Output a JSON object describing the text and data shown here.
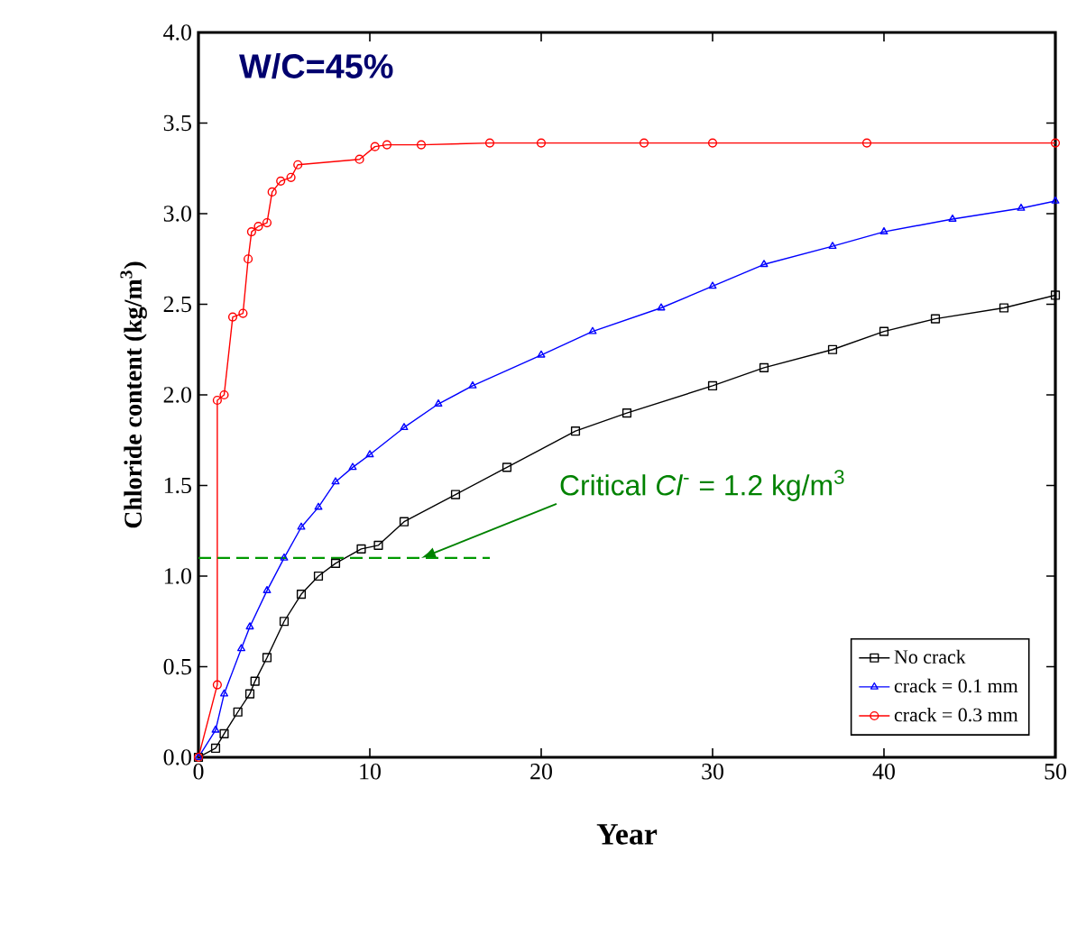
{
  "chart_data": {
    "type": "line",
    "xlabel": "Year",
    "ylabel": "Chloride content (kg/m$^{3}$)",
    "xlim": [
      0,
      50
    ],
    "ylim": [
      0,
      4
    ],
    "xticks": [
      0,
      10,
      20,
      30,
      40,
      50
    ],
    "yticks": [
      {
        "value": 0,
        "label": "0.0"
      },
      {
        "value": 0.5,
        "label": "0.5"
      },
      {
        "value": 1,
        "label": "1.0"
      },
      {
        "value": 1.5,
        "label": "1.5"
      },
      {
        "value": 2,
        "label": "2.0"
      },
      {
        "value": 2.5,
        "label": "2.5"
      },
      {
        "value": 3,
        "label": "3.0"
      },
      {
        "value": 3.5,
        "label": "3.5"
      },
      {
        "value": 4,
        "label": "4.0"
      }
    ],
    "legend": "bottom right",
    "annotations": [
      "W/C=45%",
      {
        "text": "Critical *Cl*$^{-}$ = 1.2 kg/m$^{3}$",
        "x": 13,
        "y": 1.1
      }
    ],
    "series": [
      {
        "name": "No crack",
        "color": "#000000",
        "marker": "square",
        "x": [
          0,
          1,
          1.5,
          2.3,
          3,
          3.3,
          4,
          5,
          6,
          7,
          8,
          9.5,
          10.5,
          12,
          15,
          18,
          22,
          25,
          30,
          33,
          37,
          40,
          43,
          47,
          50
        ],
        "values": [
          0,
          0.05,
          0.13,
          0.25,
          0.35,
          0.42,
          0.55,
          0.75,
          0.9,
          1.0,
          1.07,
          1.15,
          1.17,
          1.3,
          1.45,
          1.6,
          1.8,
          1.9,
          2.05,
          2.15,
          2.25,
          2.35,
          2.42,
          2.48,
          2.55
        ]
      },
      {
        "name": "crack = 0.1 mm",
        "color": "#0000ff",
        "marker": "triangle",
        "x": [
          0,
          1,
          1.5,
          2.5,
          3,
          4,
          5,
          6,
          7,
          8,
          9,
          10,
          12,
          14,
          16,
          20,
          23,
          27,
          30,
          33,
          37,
          40,
          44,
          48,
          50
        ],
        "values": [
          0,
          0.15,
          0.35,
          0.6,
          0.72,
          0.92,
          1.1,
          1.27,
          1.38,
          1.52,
          1.6,
          1.67,
          1.82,
          1.95,
          2.05,
          2.22,
          2.35,
          2.48,
          2.6,
          2.72,
          2.82,
          2.9,
          2.97,
          3.03,
          3.07
        ]
      },
      {
        "name": "crack = 0.3 mm",
        "color": "#ff0000",
        "marker": "circle",
        "x": [
          0,
          1.1,
          1.1,
          1.5,
          2,
          2.6,
          2.9,
          3.1,
          3.5,
          4,
          4.3,
          4.8,
          5.4,
          5.8,
          9.4,
          10.3,
          11,
          13,
          17,
          20,
          26,
          30,
          39,
          50
        ],
        "values": [
          0,
          0.4,
          1.97,
          2.0,
          2.43,
          2.45,
          2.75,
          2.9,
          2.93,
          2.95,
          3.12,
          3.18,
          3.2,
          3.27,
          3.3,
          3.37,
          3.38,
          3.38,
          3.39,
          3.39,
          3.39,
          3.39,
          3.39,
          3.39
        ]
      },
      {
        "color": "#009900",
        "marker": "none",
        "line_style": "dashed",
        "x": [
          0,
          17
        ],
        "values": [
          1.1,
          1.1
        ]
      }
    ]
  }
}
